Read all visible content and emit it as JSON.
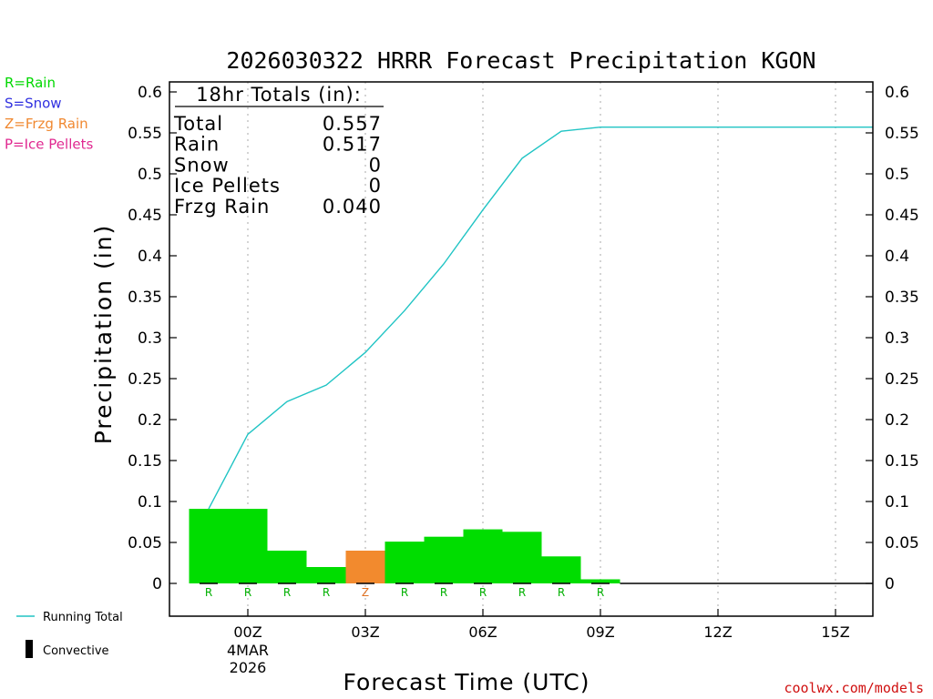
{
  "chart_data": {
    "type": "bar",
    "title": "2026030322 HRRR Forecast Precipitation KGON",
    "xlabel": "Forecast Time (UTC)",
    "ylabel": "Precipitation (in)",
    "ylim": [
      -0.04,
      0.62
    ],
    "yticks": [
      "0",
      "0.05",
      "0.1",
      "0.15",
      "0.2",
      "0.25",
      "0.3",
      "0.35",
      "0.4",
      "0.45",
      "0.5",
      "0.55",
      "0.6"
    ],
    "xlim": [
      -2,
      16
    ],
    "xticks": [
      {
        "hour": 0,
        "label": "00Z",
        "sub1": "4MAR",
        "sub2": "2026"
      },
      {
        "hour": 3,
        "label": "03Z",
        "sub1": "",
        "sub2": ""
      },
      {
        "hour": 6,
        "label": "06Z",
        "sub1": "",
        "sub2": ""
      },
      {
        "hour": 9,
        "label": "09Z",
        "sub1": "",
        "sub2": ""
      },
      {
        "hour": 12,
        "label": "12Z",
        "sub1": "",
        "sub2": ""
      },
      {
        "hour": 15,
        "label": "15Z",
        "sub1": "",
        "sub2": ""
      }
    ],
    "hours": [
      -1,
      0,
      1,
      2,
      3,
      4,
      5,
      6,
      7,
      8,
      9
    ],
    "values": [
      0.091,
      0.091,
      0.04,
      0.02,
      0.04,
      0.051,
      0.057,
      0.066,
      0.063,
      0.033,
      0.005
    ],
    "types": [
      "R",
      "R",
      "R",
      "R",
      "Z",
      "R",
      "R",
      "R",
      "R",
      "R",
      "R"
    ],
    "running_total": {
      "name": "Running Total",
      "x": [
        -1,
        0,
        1,
        2,
        3,
        4,
        5,
        6,
        7,
        8,
        9,
        16
      ],
      "y": [
        0.091,
        0.182,
        0.222,
        0.242,
        0.282,
        0.333,
        0.39,
        0.456,
        0.519,
        0.552,
        0.557,
        0.557
      ]
    },
    "totals_box": {
      "header": "18hr Totals (in):",
      "rows": [
        {
          "label": "Total",
          "value": "0.557"
        },
        {
          "label": "Rain",
          "value": "0.517"
        },
        {
          "label": "Snow",
          "value": "0"
        },
        {
          "label": "Ice Pellets",
          "value": "0"
        },
        {
          "label": "Frzg Rain",
          "value": "0.040"
        }
      ]
    },
    "type_legend": [
      {
        "text": "R=Rain",
        "color": "#00d800"
      },
      {
        "text": "S=Snow",
        "color": "#3030e0"
      },
      {
        "text": "Z=Frzg Rain",
        "color": "#f08830"
      },
      {
        "text": "P=Ice Pellets",
        "color": "#e02890"
      }
    ],
    "series_legend": {
      "running_total": "Running Total",
      "convective": "Convective"
    },
    "colors": {
      "rain": "#00dd00",
      "frzg_rain": "#f28a2e",
      "snow": "#3030e0",
      "ice_pellets": "#e02890",
      "running_total": "#20c4c4",
      "convective": "#000000",
      "rain_label": "#00b000",
      "frzg_label": "#e07020"
    },
    "credit": "coolwx.com/models"
  }
}
